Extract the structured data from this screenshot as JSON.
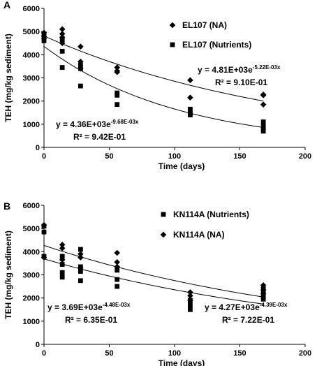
{
  "chart_data": [
    {
      "panel_label": "A",
      "type": "scatter",
      "xlabel": "Time (days)",
      "ylabel": "TEH (mg/kg sediment)",
      "xlim": [
        0,
        200
      ],
      "ylim": [
        0,
        6000
      ],
      "xticks": [
        0,
        50,
        100,
        150,
        200
      ],
      "yticks": [
        0,
        1000,
        2000,
        3000,
        4000,
        5000,
        6000
      ],
      "legend_position": "top-right",
      "grid": false,
      "series": [
        {
          "name": "EL107 (NA)",
          "marker": "diamond",
          "x": [
            0,
            0,
            0,
            14,
            14,
            14,
            14,
            28,
            28,
            28,
            56,
            56,
            56,
            112,
            112,
            168,
            168,
            168
          ],
          "y": [
            4950,
            4800,
            4700,
            5100,
            4900,
            4750,
            4500,
            4350,
            3700,
            3400,
            3450,
            3300,
            3250,
            2900,
            2150,
            2280,
            2250,
            1850
          ],
          "fit": {
            "a": 4810,
            "b": -0.00522
          },
          "equation": {
            "y_prefix": "y = 4.81E+03e",
            "exponent": "-5.22E-03x",
            "r2": "R² = 9.10E-01"
          }
        },
        {
          "name": "EL107 (Nutrients)",
          "marker": "square",
          "x": [
            0,
            0,
            0,
            14,
            14,
            14,
            28,
            28,
            28,
            56,
            56,
            56,
            112,
            112,
            112,
            168,
            168,
            168,
            168
          ],
          "y": [
            4900,
            4750,
            4600,
            4650,
            4150,
            3450,
            3550,
            3400,
            2650,
            2350,
            2250,
            1850,
            1650,
            1500,
            1400,
            1100,
            950,
            800,
            700
          ],
          "fit": {
            "a": 4360,
            "b": -0.00968
          },
          "equation": {
            "y_prefix": "y = 4.36E+03e",
            "exponent": "-9.68E-03x",
            "r2": "R² = 9.42E-01"
          }
        }
      ]
    },
    {
      "panel_label": "B",
      "type": "scatter",
      "xlabel": "Time (days)",
      "ylabel": "TEH (mg/kg sediment)",
      "xlim": [
        0,
        200
      ],
      "ylim": [
        0,
        6000
      ],
      "xticks": [
        0,
        50,
        100,
        150,
        200
      ],
      "yticks": [
        0,
        1000,
        2000,
        3000,
        4000,
        5000,
        6000
      ],
      "legend_position": "top-right",
      "grid": false,
      "series": [
        {
          "name": "KN114A (Nutrients)",
          "marker": "square",
          "x": [
            0,
            0,
            0,
            14,
            14,
            14,
            14,
            28,
            28,
            28,
            28,
            56,
            56,
            56,
            112,
            112,
            112,
            168,
            168,
            168,
            168
          ],
          "y": [
            5100,
            4850,
            3800,
            3800,
            3450,
            3100,
            2900,
            4100,
            3350,
            3150,
            2750,
            3200,
            2800,
            2500,
            1900,
            1700,
            1500,
            2400,
            2200,
            2050,
            1950
          ],
          "fit": {
            "a": 3690,
            "b": -0.00448
          },
          "equation": {
            "y_prefix": "y = 3.69E+03e",
            "exponent": "-4.48E-03x",
            "r2": "R² = 6.35E-01"
          }
        },
        {
          "name": "KN114A (NA)",
          "marker": "diamond",
          "x": [
            0,
            0,
            14,
            14,
            14,
            28,
            28,
            28,
            56,
            56,
            56,
            112,
            112,
            112,
            168,
            168,
            168
          ],
          "y": [
            5150,
            3750,
            4300,
            4150,
            3650,
            3900,
            3750,
            3300,
            3950,
            3550,
            3350,
            2250,
            2100,
            1900,
            2550,
            2350,
            2200
          ],
          "fit": {
            "a": 4270,
            "b": -0.00439
          },
          "equation": {
            "y_prefix": "y = 4.27E+03e",
            "exponent": "-4.39E-03x",
            "r2": "R² = 7.22E-01"
          }
        }
      ]
    }
  ]
}
